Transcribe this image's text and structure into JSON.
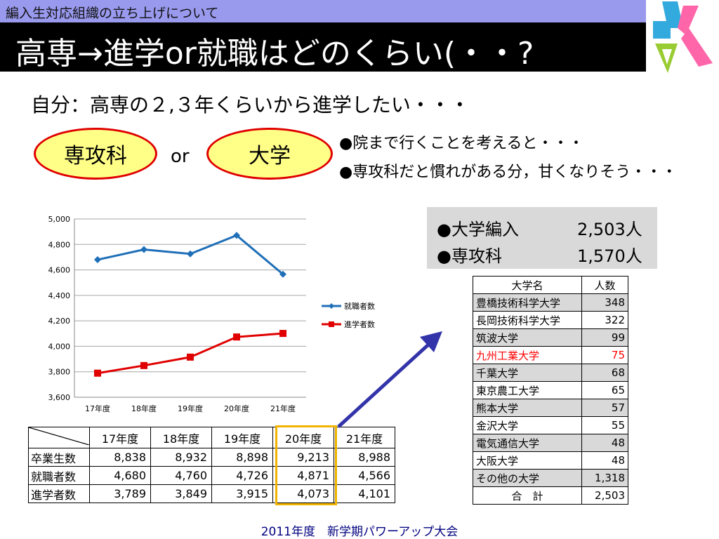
{
  "header": {
    "band_title": "編入生対応組織の立ち上げについて",
    "main_title": "高専→進学or就職はどのくらい(・・?"
  },
  "subtitle": "自分：高専の２,３年くらいから進学したい・・・",
  "options": {
    "left": "専攻科",
    "middle": "or",
    "right": "大学"
  },
  "notes": [
    "●院まで行くことを考えると・・・",
    "●専攻科だと慣れがある分，甘くなりそう・・・"
  ],
  "stats": [
    {
      "label": "●大学編入",
      "value": "2,503人"
    },
    {
      "label": "●専攻科",
      "value": "1,570人"
    }
  ],
  "chart_data": {
    "type": "line",
    "categories": [
      "17年度",
      "18年度",
      "19年度",
      "20年度",
      "21年度"
    ],
    "series": [
      {
        "name": "就職者数",
        "values": [
          4680,
          4760,
          4726,
          4871,
          4566
        ],
        "color": "#1f6fb8",
        "marker": "diamond"
      },
      {
        "name": "進学者数",
        "values": [
          3789,
          3849,
          3915,
          4073,
          4101
        ],
        "color": "#e00000",
        "marker": "square"
      }
    ],
    "ylim": [
      3600,
      5000
    ],
    "yticks": [
      "3,600",
      "3,800",
      "4,000",
      "4,200",
      "4,400",
      "4,600",
      "4,800",
      "5,000"
    ],
    "grid": true,
    "legend": "right"
  },
  "table": {
    "columns": [
      "17年度",
      "18年度",
      "19年度",
      "20年度",
      "21年度"
    ],
    "rows": [
      {
        "label": "卒業生数",
        "values": [
          "8,838",
          "8,932",
          "8,898",
          "9,213",
          "8,988"
        ]
      },
      {
        "label": "就職者数",
        "values": [
          "4,680",
          "4,760",
          "4,726",
          "4,871",
          "4,566"
        ]
      },
      {
        "label": "進学者数",
        "values": [
          "3,789",
          "3,849",
          "3,915",
          "4,073",
          "4,101"
        ]
      }
    ],
    "highlight_color": "#f0b400"
  },
  "universities": {
    "header": {
      "name": "大学名",
      "count": "人数"
    },
    "rows": [
      {
        "name": "豊橋技術科学大学",
        "count": "348"
      },
      {
        "name": "長岡技術科学大学",
        "count": "322"
      },
      {
        "name": "筑波大学",
        "count": "99"
      },
      {
        "name": "九州工業大学",
        "count": "75"
      },
      {
        "name": "千葉大学",
        "count": "68"
      },
      {
        "name": "東京農工大学",
        "count": "65"
      },
      {
        "name": "熊本大学",
        "count": "57"
      },
      {
        "name": "金沢大学",
        "count": "55"
      },
      {
        "name": "電気通信大学",
        "count": "48"
      },
      {
        "name": "大阪大学",
        "count": "48"
      },
      {
        "name": "その他の大学",
        "count": "1,318"
      }
    ],
    "total": {
      "name": "合　計",
      "count": "2,503"
    },
    "highlight_color": "#ff0000"
  },
  "colors": {
    "band": "#9999ee",
    "title_bg": "#000000",
    "arrow": "#3333aa",
    "oval_fill": "#ffff88",
    "oval_border": "#e00000"
  },
  "footer": "2011年度　新学期パワーアップ大会"
}
